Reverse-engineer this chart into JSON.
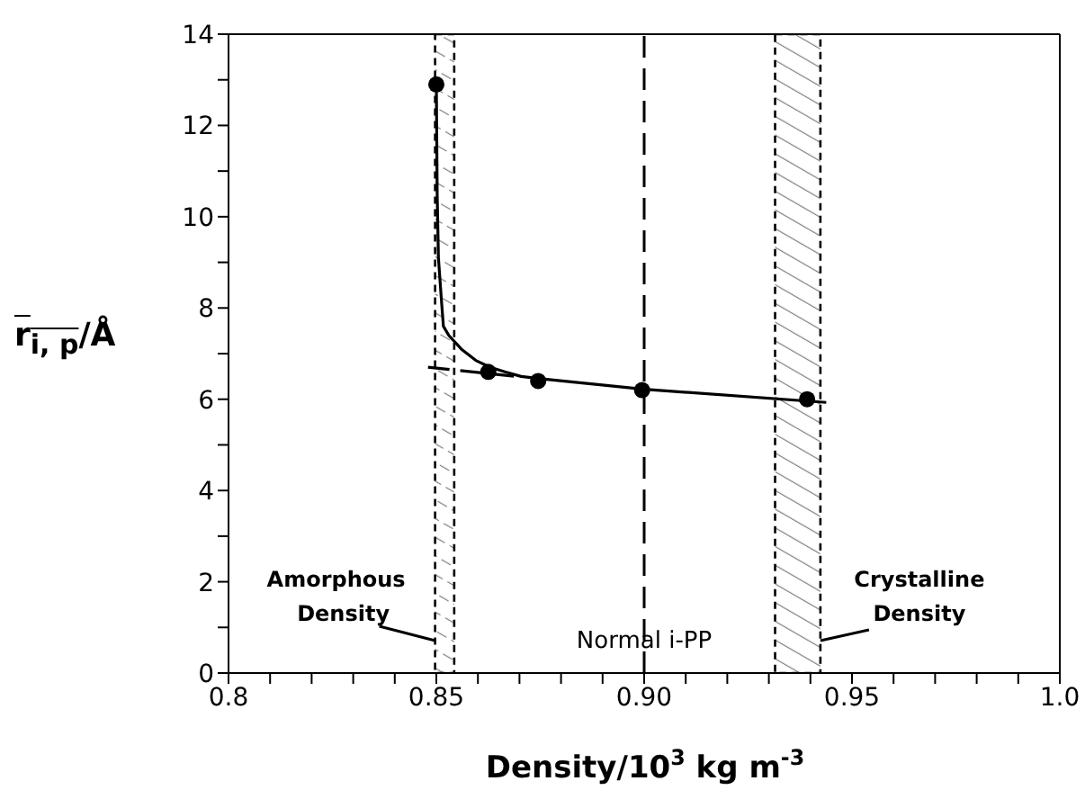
{
  "chart_data": {
    "type": "line",
    "xlabel": "Density/10$^{3}$  kg m$^{-3}$",
    "ylabel": "r$_{i, p}$/Å",
    "xlim": [
      0.8,
      1.0
    ],
    "ylim": [
      0,
      14
    ],
    "xticks": [
      0.8,
      {
        "value": 0.81,
        "label": null
      },
      {
        "value": 0.82,
        "label": null
      },
      {
        "value": 0.83,
        "label": null
      },
      {
        "value": 0.84,
        "label": null
      },
      0.85,
      {
        "value": 0.86,
        "label": null
      },
      {
        "value": 0.87,
        "label": null
      },
      {
        "value": 0.88,
        "label": null
      },
      {
        "value": 0.89,
        "label": null
      },
      {
        "value": 0.9,
        "label": "0.90"
      },
      {
        "value": 0.91,
        "label": null
      },
      {
        "value": 0.92,
        "label": null
      },
      {
        "value": 0.93,
        "label": null
      },
      {
        "value": 0.94,
        "label": null
      },
      0.95,
      {
        "value": 0.96,
        "label": null
      },
      {
        "value": 0.97,
        "label": null
      },
      {
        "value": 0.98,
        "label": null
      },
      {
        "value": 0.99,
        "label": null
      },
      {
        "value": 1.0,
        "label": "1.0"
      }
    ],
    "yticks": [
      0,
      {
        "value": 1,
        "label": null
      },
      2,
      {
        "value": 3,
        "label": null
      },
      4,
      {
        "value": 5,
        "label": null
      },
      6,
      {
        "value": 7,
        "label": null
      },
      8,
      {
        "value": 9,
        "label": null
      },
      10,
      {
        "value": 11,
        "label": null
      },
      12,
      {
        "value": 13,
        "label": null
      },
      14
    ],
    "series": [
      {
        "type": "scatter",
        "marker": "circle",
        "color": "#000000",
        "x": [
          0.85,
          0.8625,
          0.8745,
          0.8995,
          0.9392
        ],
        "values": [
          12.9,
          6.6,
          6.4,
          6.2,
          6.0
        ]
      },
      {
        "marker": "none",
        "line_style": "solid",
        "color": "#000000",
        "x": [
          0.85,
          0.8502,
          0.8505,
          0.8512,
          0.8517,
          0.853,
          0.856,
          0.8595,
          0.863,
          0.8665,
          0.8704,
          0.875,
          0.9,
          0.9438
        ],
        "values": [
          12.9,
          10.5,
          9.1,
          8.2,
          7.6,
          7.4,
          7.1,
          6.85,
          6.7,
          6.6,
          6.5,
          6.45,
          6.22,
          5.93
        ]
      },
      {
        "marker": "none",
        "line_style": "dashed",
        "color": "#000000",
        "x": [
          0.848,
          0.869
        ],
        "values": [
          6.7,
          6.5
        ]
      }
    ],
    "bands": [
      {
        "axis": "x",
        "from": 0.8497,
        "to": 0.8543,
        "label": "Amorphous Density",
        "color": "#000000"
      },
      {
        "axis": "x",
        "from": 0.9315,
        "to": 0.9424,
        "label": "Crystalline Density",
        "color": "#000000"
      }
    ],
    "ref_lines": [
      {
        "axis": "x",
        "value": 0.9,
        "label": "Normal i-PP",
        "color": "#000000",
        "line_style": "dashed"
      }
    ]
  }
}
